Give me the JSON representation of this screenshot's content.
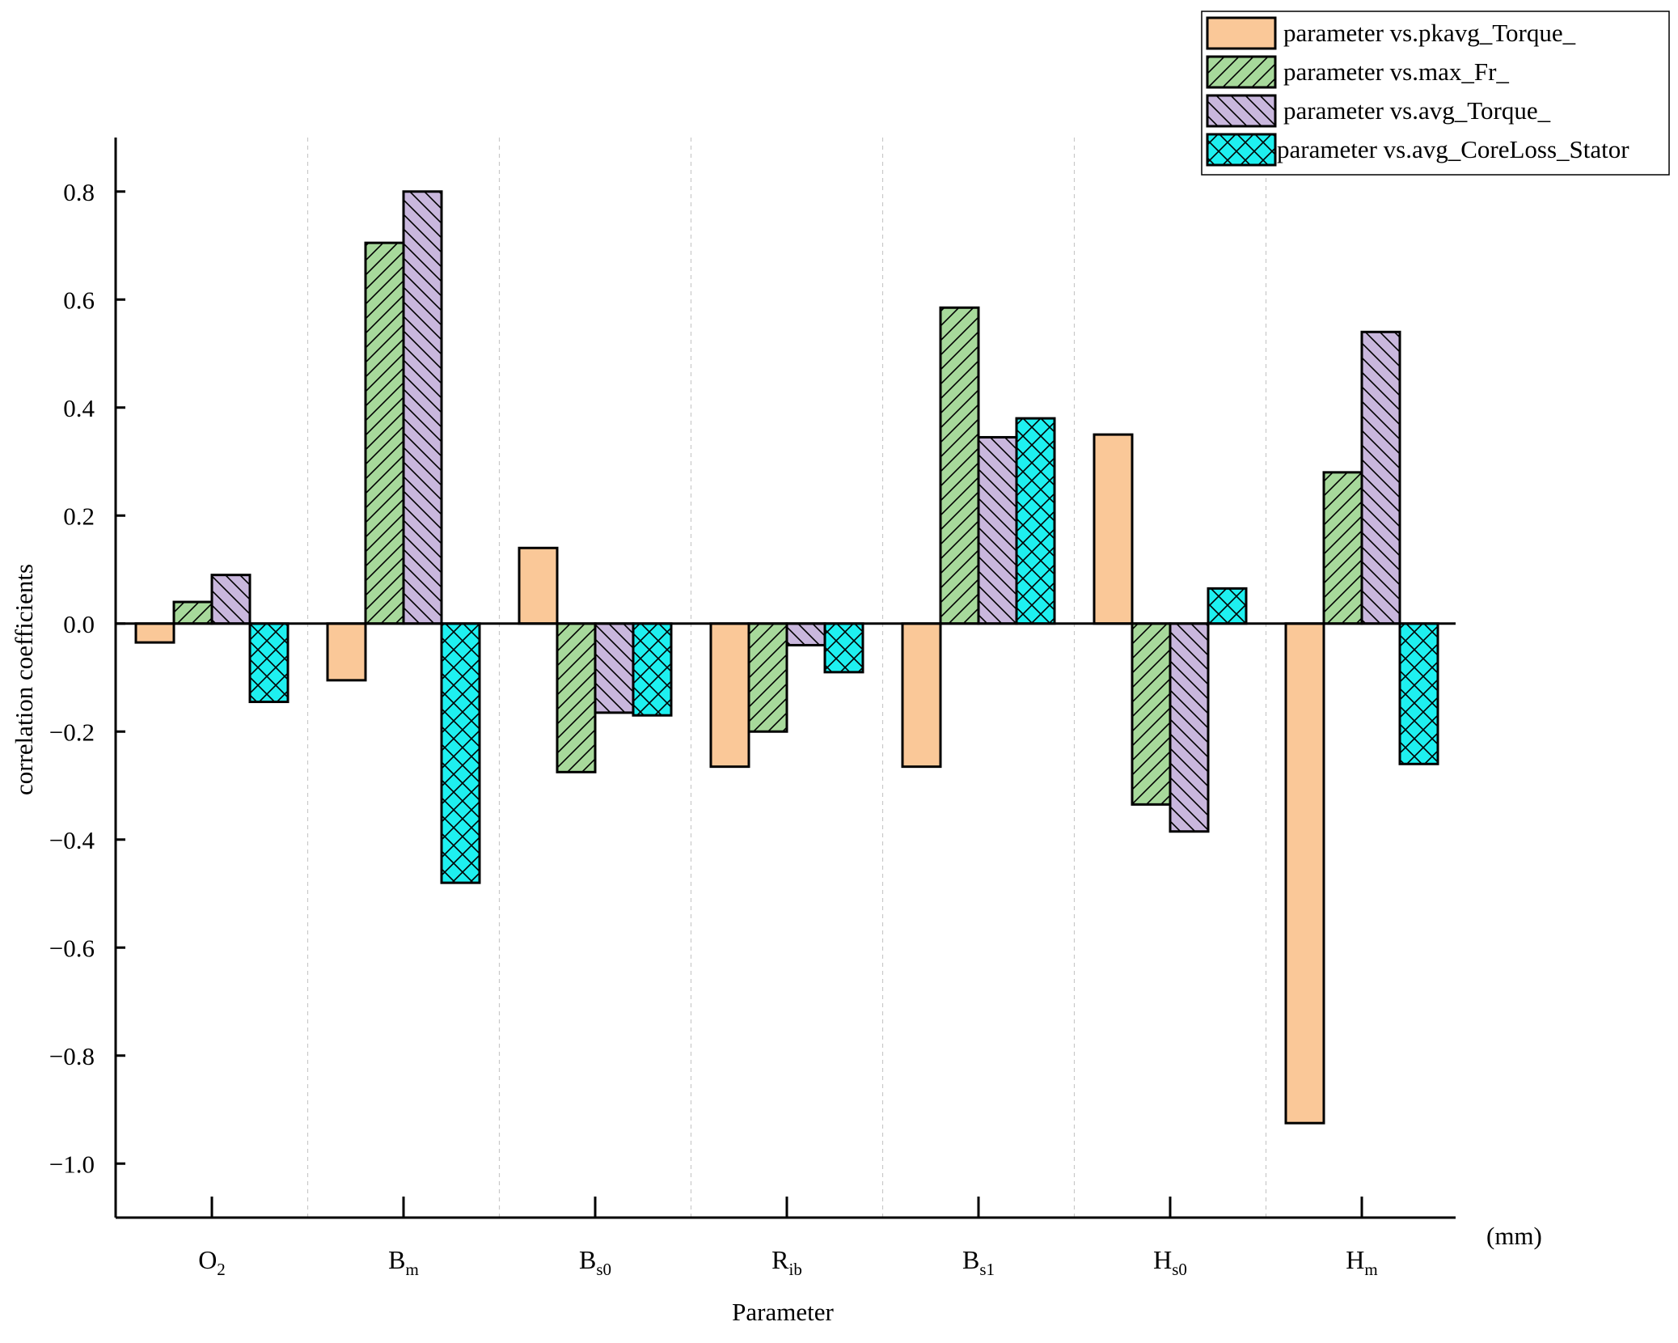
{
  "chart_data": {
    "type": "bar",
    "title": "",
    "xlabel": "Parameter",
    "ylabel": "correlation coefficients",
    "unit_label": "(mm)",
    "ylim": [
      -1.1,
      0.9
    ],
    "yticks": [
      -1.0,
      -0.8,
      -0.6,
      -0.4,
      -0.2,
      0.0,
      0.2,
      0.4,
      0.6,
      0.8
    ],
    "ytick_labels": [
      "−1.0",
      "−0.8",
      "−0.6",
      "−0.4",
      "−0.2",
      "0.0",
      "0.2",
      "0.4",
      "0.6",
      "0.8"
    ],
    "categories": [
      {
        "main": "O",
        "sub": "2"
      },
      {
        "main": "B",
        "sub": "m"
      },
      {
        "main": "B",
        "sub": "s0"
      },
      {
        "main": "R",
        "sub": "ib"
      },
      {
        "main": "B",
        "sub": "s1"
      },
      {
        "main": "H",
        "sub": "s0"
      },
      {
        "main": "H",
        "sub": "m"
      }
    ],
    "series": [
      {
        "name": "parameter vs.pkavg_Torque_",
        "color": "#FAC898",
        "pattern": "none",
        "values": [
          -0.035,
          -0.105,
          0.14,
          -0.265,
          -0.265,
          0.35,
          -0.925
        ]
      },
      {
        "name": "parameter vs.max_Fr_",
        "color": "#A7D99B",
        "pattern": "forward-diagonal",
        "values": [
          0.04,
          0.705,
          -0.275,
          -0.2,
          0.585,
          -0.335,
          0.28
        ]
      },
      {
        "name": "parameter vs.avg_Torque_",
        "color": "#C9B7DD",
        "pattern": "back-diagonal",
        "values": [
          0.09,
          0.8,
          -0.165,
          -0.04,
          0.345,
          -0.385,
          0.54
        ]
      },
      {
        "name": "parameter vs.avg_CoreLoss_Stator",
        "color": "#1EF0F0",
        "pattern": "crosshatch",
        "values": [
          -0.145,
          -0.48,
          -0.17,
          -0.09,
          0.38,
          0.065,
          -0.26
        ]
      }
    ],
    "grid": false,
    "category_separators": true,
    "legend_position": "top-right"
  }
}
